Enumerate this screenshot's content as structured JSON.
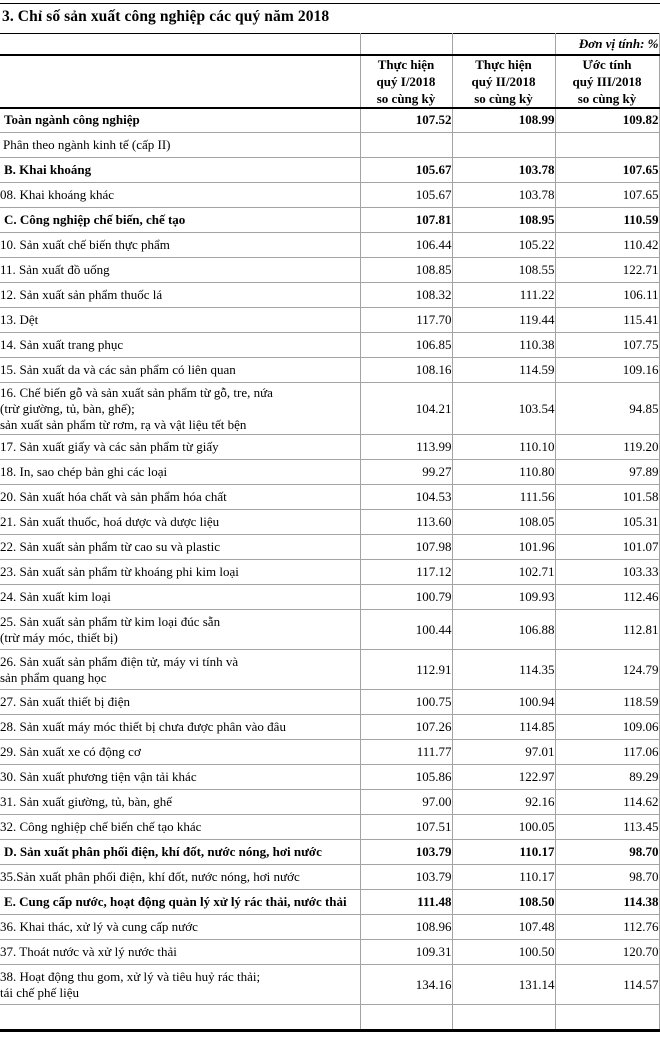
{
  "title": "3. Chỉ số sản xuất công nghiệp các quý năm 2018",
  "unit_note": "Đơn vị tính: %",
  "colors": {
    "grid_line": "#a3a3a3",
    "heavy_line": "#000000",
    "background": "#ffffff",
    "text": "#000000"
  },
  "table": {
    "column_headers": [
      {
        "lines": [
          "Thực hiện",
          "quý I/2018",
          "so cùng kỳ"
        ]
      },
      {
        "lines": [
          "Thực hiện",
          "quý II/2018",
          "so cùng kỳ"
        ]
      },
      {
        "lines": [
          "Ước tính",
          "quý III/2018",
          "so cùng kỳ"
        ]
      }
    ],
    "rows": [
      {
        "style": "category",
        "extra": "first",
        "label_lines": [
          "Toàn ngành công nghiệp"
        ],
        "values": [
          "107.52",
          "108.99",
          "109.82"
        ]
      },
      {
        "style": "plain",
        "extra": "",
        "label_lines": [
          "Phân theo ngành kinh tế (cấp II)"
        ],
        "values": [
          "",
          "",
          ""
        ]
      },
      {
        "style": "category",
        "extra": "",
        "label_lines": [
          "B. Khai khoáng"
        ],
        "values": [
          "105.67",
          "103.78",
          "107.65"
        ]
      },
      {
        "style": "item",
        "extra": "",
        "label_lines": [
          "08. Khai khoáng khác"
        ],
        "values": [
          "105.67",
          "103.78",
          "107.65"
        ]
      },
      {
        "style": "category",
        "extra": "",
        "label_lines": [
          "C. Công nghiệp chế biến, chế tạo"
        ],
        "values": [
          "107.81",
          "108.95",
          "110.59"
        ]
      },
      {
        "style": "item",
        "extra": "",
        "label_lines": [
          "10. Sản xuất chế biến thực phẩm"
        ],
        "values": [
          "106.44",
          "105.22",
          "110.42"
        ]
      },
      {
        "style": "item",
        "extra": "",
        "label_lines": [
          "11. Sản xuất đồ uống"
        ],
        "values": [
          "108.85",
          "108.55",
          "122.71"
        ]
      },
      {
        "style": "item",
        "extra": "",
        "label_lines": [
          "12. Sản xuất sản phẩm thuốc lá"
        ],
        "values": [
          "108.32",
          "111.22",
          "106.11"
        ]
      },
      {
        "style": "item",
        "extra": "",
        "label_lines": [
          "13. Dệt"
        ],
        "values": [
          "117.70",
          "119.44",
          "115.41"
        ]
      },
      {
        "style": "item",
        "extra": "",
        "label_lines": [
          "14. Sản xuất trang phục"
        ],
        "values": [
          "106.85",
          "110.38",
          "107.75"
        ]
      },
      {
        "style": "item",
        "extra": "",
        "label_lines": [
          "15. Sản xuất da và các sản phẩm có liên quan"
        ],
        "values": [
          "108.16",
          "114.59",
          "109.16"
        ]
      },
      {
        "style": "item",
        "extra": "",
        "label_lines": [
          "16. Chế biến gỗ và sản xuất sản phẩm từ gỗ, tre, nứa",
          "(trừ giường, tủ, bàn, ghế);",
          "sản xuất sản phẩm từ rơm, rạ và vật liệu tết bện"
        ],
        "values": [
          "104.21",
          "103.54",
          "94.85"
        ]
      },
      {
        "style": "item",
        "extra": "",
        "label_lines": [
          "17. Sản xuất giấy và các sản phẩm từ giấy"
        ],
        "values": [
          "113.99",
          "110.10",
          "119.20"
        ]
      },
      {
        "style": "item",
        "extra": "",
        "label_lines": [
          "18. In, sao chép bản ghi các loại"
        ],
        "values": [
          "99.27",
          "110.80",
          "97.89"
        ]
      },
      {
        "style": "item",
        "extra": "",
        "label_lines": [
          "20. Sản xuất hóa chất và sản phẩm hóa chất"
        ],
        "values": [
          "104.53",
          "111.56",
          "101.58"
        ]
      },
      {
        "style": "item",
        "extra": "",
        "label_lines": [
          "21. Sản xuất thuốc, hoá dược và dược liệu"
        ],
        "values": [
          "113.60",
          "108.05",
          "105.31"
        ]
      },
      {
        "style": "item",
        "extra": "",
        "label_lines": [
          "22. Sản xuất sản phẩm từ cao su và plastic"
        ],
        "values": [
          "107.98",
          "101.96",
          "101.07"
        ]
      },
      {
        "style": "item",
        "extra": "",
        "label_lines": [
          "23. Sản xuất sản phẩm từ khoáng phi kim loại"
        ],
        "values": [
          "117.12",
          "102.71",
          "103.33"
        ]
      },
      {
        "style": "item",
        "extra": "",
        "label_lines": [
          "24. Sản xuất kim loại"
        ],
        "values": [
          "100.79",
          "109.93",
          "112.46"
        ]
      },
      {
        "style": "item",
        "extra": "",
        "label_lines": [
          "25. Sản xuất sản phẩm từ kim loại đúc sẵn",
          "(trừ máy móc, thiết bị)"
        ],
        "values": [
          "100.44",
          "106.88",
          "112.81"
        ]
      },
      {
        "style": "item",
        "extra": "",
        "label_lines": [
          "26. Sản xuất sản phẩm điện tử, máy vi tính và",
          "sản phẩm quang học"
        ],
        "values": [
          "112.91",
          "114.35",
          "124.79"
        ]
      },
      {
        "style": "item",
        "extra": "",
        "label_lines": [
          "27. Sản xuất thiết bị điện"
        ],
        "values": [
          "100.75",
          "100.94",
          "118.59"
        ]
      },
      {
        "style": "item",
        "extra": "",
        "label_lines": [
          "28. Sản xuất máy móc thiết bị chưa được phân vào đâu"
        ],
        "values": [
          "107.26",
          "114.85",
          "109.06"
        ]
      },
      {
        "style": "item",
        "extra": "",
        "label_lines": [
          "29. Sản xuất xe có động cơ"
        ],
        "values": [
          "111.77",
          "97.01",
          "117.06"
        ]
      },
      {
        "style": "item",
        "extra": "",
        "label_lines": [
          "30. Sản xuất phương tiện vận tải khác"
        ],
        "values": [
          "105.86",
          "122.97",
          "89.29"
        ]
      },
      {
        "style": "item",
        "extra": "",
        "label_lines": [
          "31. Sản xuất giường, tủ, bàn, ghế"
        ],
        "values": [
          "97.00",
          "92.16",
          "114.62"
        ]
      },
      {
        "style": "item",
        "extra": "",
        "label_lines": [
          "32. Công nghiệp chế biến chế tạo khác"
        ],
        "values": [
          "107.51",
          "100.05",
          "113.45"
        ]
      },
      {
        "style": "category",
        "extra": "",
        "label_lines": [
          "D. Sản xuất phân phối điện, khí đốt, nước nóng, hơi nước"
        ],
        "values": [
          "103.79",
          "110.17",
          "98.70"
        ]
      },
      {
        "style": "item",
        "extra": "",
        "label_lines": [
          "35.Sản xuất phân phối điện, khí đốt, nước nóng, hơi nước"
        ],
        "values": [
          "103.79",
          "110.17",
          "98.70"
        ]
      },
      {
        "style": "category",
        "extra": "",
        "label_lines": [
          "E. Cung cấp nước, hoạt động quản lý xử lý rác thải, nước thải"
        ],
        "values": [
          "111.48",
          "108.50",
          "114.38"
        ]
      },
      {
        "style": "item",
        "extra": "",
        "label_lines": [
          "36. Khai thác, xử lý và cung cấp nước"
        ],
        "values": [
          "108.96",
          "107.48",
          "112.76"
        ]
      },
      {
        "style": "item",
        "extra": "",
        "label_lines": [
          "37. Thoát nước và xử lý nước thải"
        ],
        "values": [
          "109.31",
          "100.50",
          "120.70"
        ]
      },
      {
        "style": "item",
        "extra": "",
        "label_lines": [
          "38. Hoạt động thu gom, xử lý và tiêu huỷ rác thải;",
          "tái chế phế liệu"
        ],
        "values": [
          "134.16",
          "131.14",
          "114.57"
        ]
      },
      {
        "style": "empty",
        "extra": "",
        "label_lines": [],
        "values": [
          "",
          "",
          ""
        ]
      }
    ]
  }
}
